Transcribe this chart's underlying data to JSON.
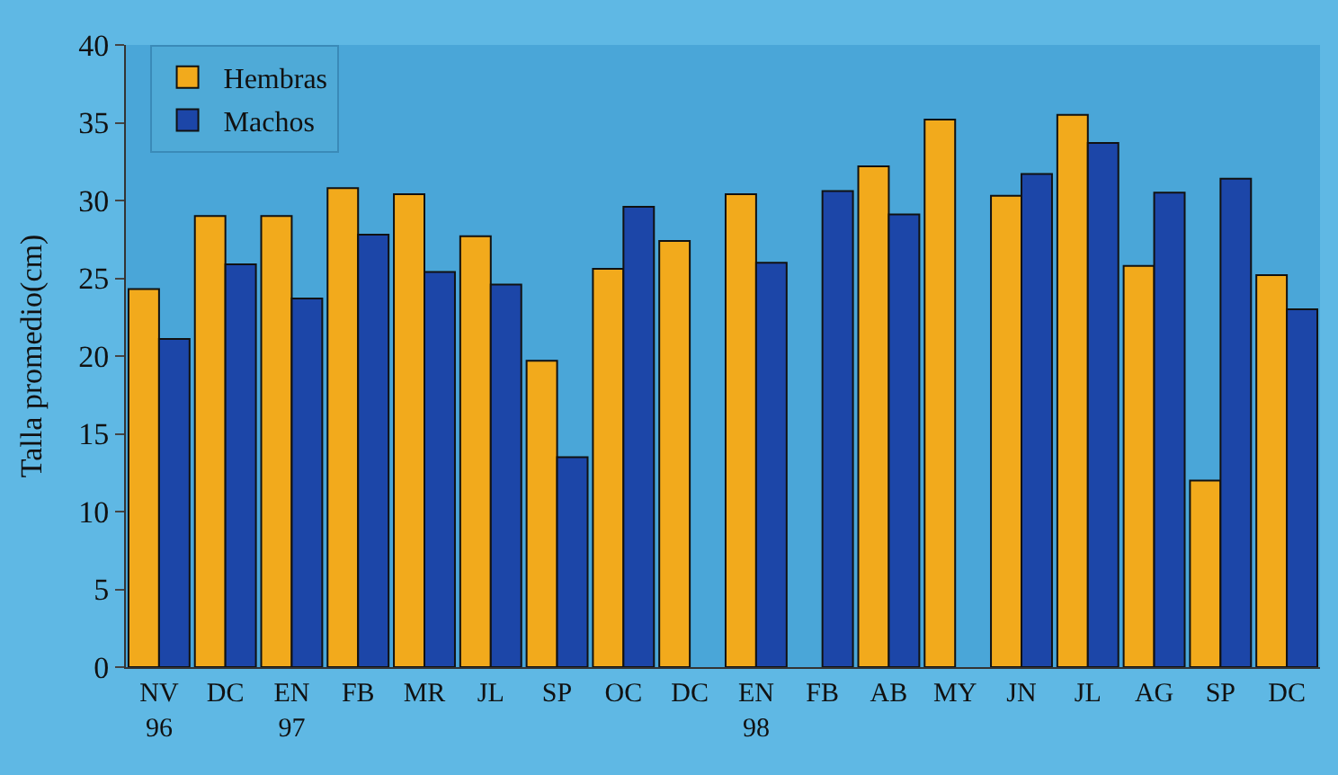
{
  "chart_data": {
    "type": "bar",
    "ylabel": "Talla promedio(cm)",
    "categories": [
      "NV\n96",
      "DC",
      "EN\n97",
      "FB",
      "MR",
      "JL",
      "SP",
      "OC",
      "DC",
      "EN\n98",
      "FB",
      "AB",
      "MY",
      "JN",
      "JL",
      "AG",
      "SP",
      "DC"
    ],
    "series": [
      {
        "name": "Hembras",
        "color": "#f2aa1c",
        "values": [
          24.3,
          29.0,
          29.0,
          30.8,
          30.4,
          27.7,
          19.7,
          25.6,
          27.4,
          30.4,
          null,
          32.2,
          35.2,
          30.3,
          35.5,
          25.8,
          12.0,
          25.2
        ]
      },
      {
        "name": "Machos",
        "color": "#1c46a8",
        "values": [
          21.1,
          25.9,
          23.7,
          27.8,
          25.4,
          24.6,
          13.5,
          29.6,
          null,
          26.0,
          30.6,
          29.1,
          null,
          31.7,
          33.7,
          30.5,
          31.4,
          23.0
        ]
      }
    ],
    "ylim": [
      0,
      40
    ],
    "yticks": [
      0,
      5,
      10,
      15,
      20,
      25,
      30,
      35,
      40
    ],
    "grid": false,
    "legend": "top left"
  }
}
